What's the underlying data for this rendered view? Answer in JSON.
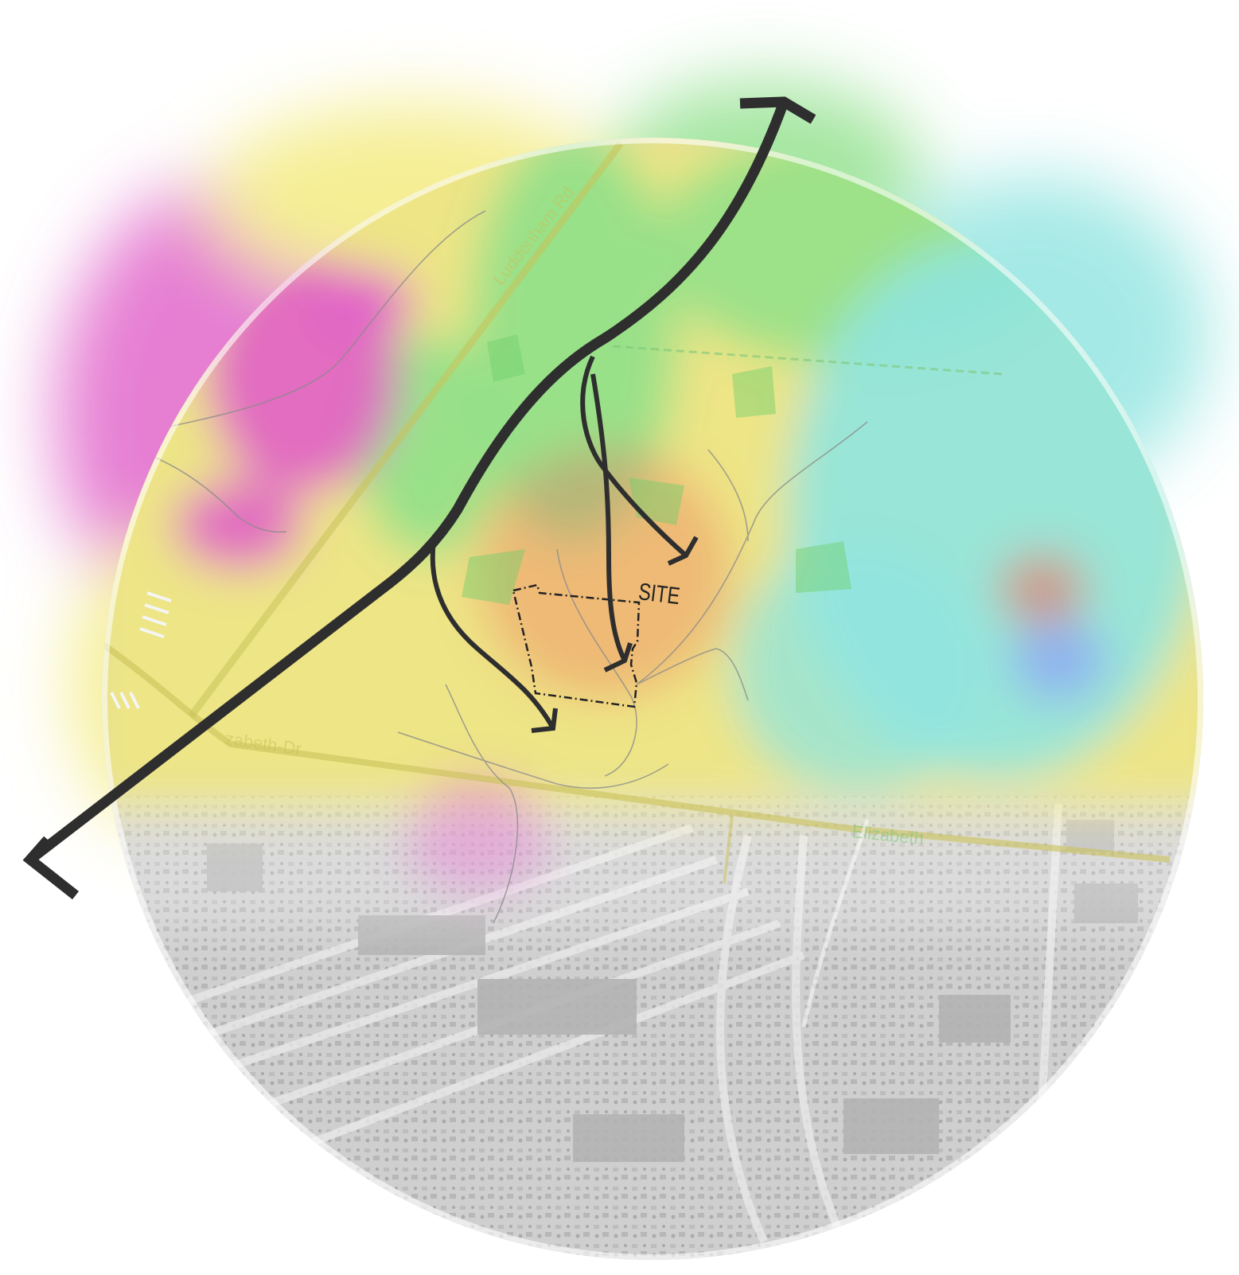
{
  "map": {
    "site_label": "SITE",
    "road_labels": {
      "luddenham": "Luddenham Rd",
      "elizabeth_west": "zabeth-Dr",
      "elizabeth_east": "Elizabeth"
    },
    "arrows": {
      "main": "main-flow-arrow",
      "branch_north": "branch-arrow-north",
      "branch_middle": "branch-arrow-middle",
      "branch_south": "branch-arrow-south"
    },
    "colors": {
      "arrow": "#2e2e2e",
      "site_boundary": "#222222",
      "heat_magenta": "#e05fc8",
      "heat_red": "#ee6a5a",
      "heat_yellow": "#f3ea7a",
      "heat_green": "#8fe08a",
      "heat_cyan": "#8fe4e0",
      "heat_blue": "#8fb0f0",
      "aerial_gray": "#c9c9c9",
      "road_yellow": "#c9c25a",
      "road_green": "#7fc67a"
    }
  }
}
